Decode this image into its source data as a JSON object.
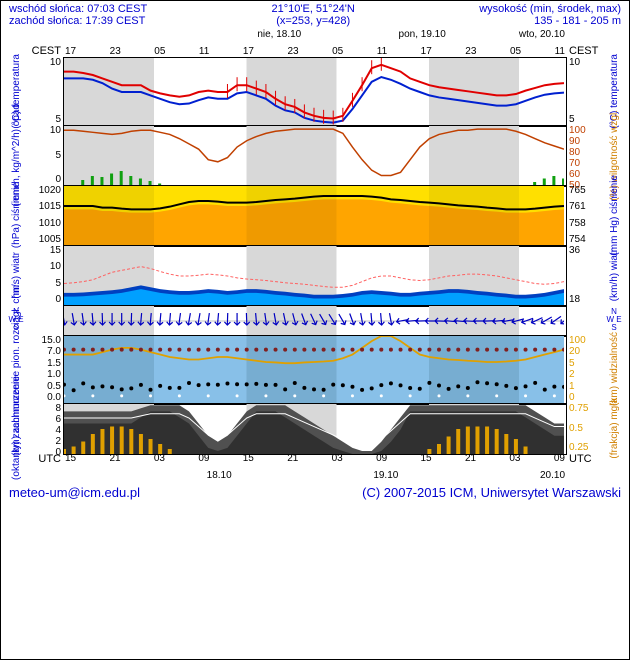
{
  "header": {
    "sunrise": "wschód słońca: 07:03 CEST",
    "sunset": "zachód słońca: 17:39 CEST",
    "coords": "21°10'E, 51°24'N",
    "xy": "(x=253, y=428)",
    "alt_label": "wysokość (min, środek, max)",
    "alt_val": "135 - 181 - 205 m"
  },
  "time": {
    "tz_left": "CEST",
    "tz_right": "CEST",
    "day_labels": [
      "nie, 18.10",
      "pon, 19.10",
      "wto, 20.10"
    ],
    "top_hours": [
      "17",
      "23",
      "05",
      "11",
      "17",
      "23",
      "05",
      "11",
      "17",
      "23",
      "05",
      "11"
    ],
    "bottom_tz": "UTC",
    "bottom_hours": [
      "15",
      "21",
      "03",
      "09",
      "15",
      "21",
      "03",
      "09",
      "15",
      "21",
      "03",
      "09"
    ],
    "bottom_days": [
      "18.10",
      "19.10",
      "20.10"
    ]
  },
  "night_bands": [
    [
      0,
      0.18
    ],
    [
      0.365,
      0.545
    ],
    [
      0.73,
      0.91
    ]
  ],
  "panels": {
    "temp": {
      "h": 68,
      "ylab_l": "temperatura",
      "ylab_l2": "(°C)",
      "ylab_r": "temperatura",
      "ylab_r2": "(°C)",
      "yticks_l": [
        "10",
        "5"
      ],
      "yticks_r": [
        "10",
        "5"
      ],
      "ylim": [
        3,
        13
      ],
      "red": [
        11,
        11,
        10.8,
        10.5,
        10,
        9.5,
        9,
        9,
        9,
        8.2,
        7.8,
        7.5,
        7.3,
        7.5,
        8,
        8.2,
        8,
        8,
        9,
        9,
        8.5,
        8,
        7,
        6.2,
        5.8,
        5,
        4.5,
        4.2,
        4.1,
        4.5,
        6.7,
        9,
        11.5,
        12,
        11.5,
        11,
        10,
        9.5,
        9,
        8.7,
        8.5,
        8.3,
        8.1,
        7.9,
        7.7,
        7.5,
        7.5,
        7.7,
        8.2,
        8.6,
        9,
        9.2,
        9.3
      ],
      "blue": [
        10,
        10,
        10,
        9.8,
        9.3,
        8.5,
        8,
        8,
        8,
        7.5,
        7,
        6.5,
        6.2,
        6.3,
        6.8,
        7.2,
        7,
        7,
        7.8,
        8,
        7.5,
        7,
        6,
        5.3,
        5,
        4.2,
        3.8,
        3.6,
        3.5,
        3.8,
        5.5,
        7.5,
        9.5,
        10.2,
        9.8,
        9.2,
        8.5,
        8,
        7.5,
        7.2,
        7,
        6.8,
        6.6,
        6.4,
        6.2,
        6,
        6,
        6.2,
        6.7,
        7.2,
        7.6,
        7.8,
        7.9
      ],
      "colors": {
        "red": "#e00000",
        "blue": "#0020d0"
      }
    },
    "precip": {
      "h": 60,
      "ylab_l": "opad",
      "ylab_l2": "(mm/h, kg/m^2/h)",
      "ylab_r": "wilgotność wzgl.",
      "ylab_r2": "(%)",
      "yticks_l": [
        "10",
        "5",
        "0"
      ],
      "yticks_r": [
        "100",
        "90",
        "80",
        "70",
        "60",
        "50"
      ],
      "ylim_l": [
        0,
        12
      ],
      "ylim_r": [
        45,
        102
      ],
      "hum": [
        98,
        98,
        97,
        96,
        95,
        94,
        95,
        97,
        98,
        98,
        96,
        94,
        90,
        85,
        80,
        70,
        68,
        72,
        82,
        88,
        92,
        95,
        97,
        98,
        99,
        99,
        99,
        99,
        99,
        95,
        82,
        70,
        60,
        55,
        55,
        58,
        70,
        82,
        90,
        94,
        96,
        98,
        98,
        99,
        99,
        99,
        99,
        97,
        94,
        90,
        86,
        83,
        80
      ],
      "bars": [
        0,
        0,
        1.2,
        2,
        1.8,
        2.5,
        3,
        2,
        1.5,
        1,
        0.5,
        0,
        0,
        0,
        0,
        0,
        0,
        0,
        0,
        0,
        0,
        0,
        0,
        0,
        0,
        0,
        0,
        0,
        0,
        0,
        0,
        0,
        0,
        0,
        0,
        0,
        0,
        0,
        0,
        0,
        0,
        0,
        0,
        0,
        0,
        0,
        0,
        0,
        0,
        0.8,
        1.5,
        2,
        1.5
      ],
      "colors": {
        "hum": "#c04000",
        "bar": "#10a010"
      }
    },
    "press": {
      "h": 60,
      "ylab_l": "ciśnienie",
      "ylab_l2": "(hPa)",
      "ylab_r": "ciśnienie",
      "ylab_r2": "(mm Hg)",
      "yticks_l": [
        "1020",
        "1015",
        "1010",
        "1005"
      ],
      "yticks_r": [
        "765",
        "761",
        "758",
        "754"
      ],
      "ylim": [
        1004,
        1022
      ],
      "line": [
        1016,
        1016,
        1016,
        1016,
        1015.5,
        1015.5,
        1015.2,
        1015,
        1015,
        1015,
        1015.3,
        1015.8,
        1016.5,
        1017.2,
        1017.5,
        1017.5,
        1017.3,
        1017,
        1017,
        1017,
        1017.2,
        1017.5,
        1017.8,
        1018,
        1018.2,
        1018.5,
        1018.8,
        1019,
        1019,
        1019,
        1019,
        1019,
        1018.8,
        1018.5,
        1018,
        1017.8,
        1017.5,
        1017.2,
        1017,
        1016.8,
        1016.5,
        1016.2,
        1016,
        1015.8,
        1015.5,
        1015.3,
        1015,
        1015,
        1015,
        1015.2,
        1015.5,
        1015.8,
        1016
      ],
      "fill_low": 1004,
      "colors": {
        "fill1": "#ffe000",
        "fill2": "#ffa500",
        "line": "#000"
      }
    },
    "wind": {
      "h": 60,
      "ylab_l": "wiatr",
      "ylab_l2": "(m/s)",
      "ylab_r": "wiatr",
      "ylab_r2": "(km/h)",
      "yticks_l": [
        "15",
        "10",
        "5",
        "0"
      ],
      "yticks_r": [
        "36",
        "18"
      ],
      "ylim": [
        0,
        16
      ],
      "gust": [
        6,
        6.2,
        6.5,
        7,
        8,
        9,
        9.5,
        10,
        10.5,
        10,
        9.2,
        8.5,
        8,
        8,
        8.2,
        8.5,
        8.3,
        8,
        7.5,
        7.2,
        7,
        6.8,
        6.5,
        6.2,
        6,
        5.8,
        5.5,
        5.2,
        5,
        5,
        5.5,
        6.5,
        7.5,
        8,
        8,
        7.5,
        7,
        6.8,
        7,
        7.5,
        8,
        8.2,
        8.5,
        8.5,
        8.3,
        8,
        7.5,
        7,
        6.5,
        6,
        5.8,
        6,
        6.5
      ],
      "avg": [
        2.5,
        2.5,
        2.6,
        2.8,
        3,
        3.2,
        3.5,
        4,
        4.5,
        4,
        3.5,
        3.2,
        3,
        3,
        3.2,
        3.5,
        3.3,
        3,
        3.2,
        3.5,
        3.5,
        3.3,
        3,
        2.8,
        2.5,
        2.3,
        2,
        2,
        2,
        2.2,
        2.5,
        3,
        3.2,
        3,
        2.8,
        2.5,
        2.5,
        2.8,
        3,
        3.2,
        3.5,
        3.5,
        3.3,
        3,
        2.8,
        2.5,
        2.3,
        2,
        2,
        2.2,
        2.5,
        3,
        3.5
      ],
      "colors": {
        "gust": "#ff6060",
        "fill1": "#00a0ff",
        "fill2": "#0040c0"
      }
    },
    "dir": {
      "h": 30,
      "ylab_l": "N",
      "ylab_l2": "W   E",
      "ylab_l3": "S",
      "ylab_r": "N",
      "ylab_r2": "W   E",
      "ylab_r3": "S",
      "angles": [
        260,
        260,
        262,
        265,
        268,
        270,
        270,
        272,
        275,
        275,
        275,
        275,
        278,
        280,
        280,
        278,
        275,
        272,
        270,
        268,
        265,
        262,
        260,
        258,
        255,
        250,
        245,
        240,
        238,
        240,
        250,
        260,
        265,
        265,
        260,
        350,
        355,
        358,
        0,
        2,
        5,
        5,
        3,
        0,
        358,
        355,
        350,
        345,
        340,
        335,
        330,
        325,
        320
      ],
      "color": "#0000c0"
    },
    "cloud": {
      "h": 68,
      "ylab_l": "zachmurzenie pion. rozciągł. chm.",
      "ylab_l2": "(km)",
      "ylab_r": "widzialność",
      "ylab_r2": "(km)",
      "yticks_l": [
        "15.0",
        "7.0",
        "1.5",
        "1.0",
        "0.5",
        "0.0"
      ],
      "yticks_r": [
        "100",
        "20",
        "5",
        "2",
        "1",
        "0"
      ],
      "vis": [
        5,
        5,
        5,
        5,
        6,
        7,
        8,
        8,
        7,
        6,
        5,
        4,
        3.5,
        3,
        3,
        3.5,
        4,
        4,
        3.5,
        3,
        2.5,
        2,
        1.8,
        1.5,
        1.5,
        1.8,
        2,
        2.2,
        2.5,
        3.5,
        5,
        8,
        12,
        15,
        15,
        12,
        8,
        5,
        4,
        3.5,
        3,
        2.8,
        2.5,
        2.3,
        2,
        2,
        2.2,
        2.5,
        3,
        4,
        5,
        6,
        7
      ],
      "colors": {
        "bg": "#88c0e8",
        "vis": "#e0a000",
        "dot_hi": "#802020",
        "dot_lo": "#000",
        "dot_w": "#fff"
      }
    },
    "okta": {
      "h": 50,
      "ylab_l": "zachmurzenie",
      "ylab_l2": "(oktanty)",
      "ylab_r": "mgła",
      "ylab_r2": "(frakcja)",
      "yticks_l": [
        "8",
        "6",
        "4",
        "2",
        "0"
      ],
      "yticks_r": [
        "0.75",
        "0.5",
        "0.25"
      ],
      "ylim": [
        0,
        8.2
      ],
      "hi": [
        7,
        7,
        7,
        7,
        7,
        7,
        7,
        7,
        7.5,
        8,
        8,
        8,
        8,
        7,
        5,
        3,
        2,
        3,
        5,
        7,
        8,
        8,
        8,
        8,
        7,
        6,
        5,
        4,
        3,
        2,
        1,
        0.5,
        0.5,
        2,
        4,
        6,
        8,
        8,
        8,
        8,
        8,
        8,
        8,
        8,
        8,
        8,
        8,
        8,
        8,
        7,
        6,
        5,
        5
      ],
      "lo": [
        5,
        5,
        5,
        5,
        5,
        5,
        5,
        5,
        6,
        7,
        7,
        7,
        6,
        5,
        3,
        1,
        0.5,
        1,
        3,
        5,
        7,
        7,
        7,
        6,
        5,
        4,
        3,
        2,
        1,
        0.5,
        0,
        0,
        0,
        0.5,
        2,
        4,
        7,
        7,
        7,
        7,
        7,
        7,
        7,
        7,
        7,
        7,
        7,
        7,
        6,
        5,
        4,
        3,
        3
      ],
      "fog": [
        0.1,
        0.15,
        0.25,
        0.4,
        0.5,
        0.55,
        0.55,
        0.5,
        0.4,
        0.3,
        0.2,
        0.1,
        0,
        0,
        0,
        0,
        0,
        0,
        0,
        0,
        0,
        0,
        0,
        0,
        0,
        0,
        0,
        0,
        0,
        0,
        0,
        0,
        0,
        0,
        0,
        0,
        0,
        0,
        0.1,
        0.2,
        0.35,
        0.5,
        0.55,
        0.55,
        0.55,
        0.5,
        0.4,
        0.3,
        0.15,
        0,
        0,
        0,
        0
      ],
      "colors": {
        "hi": "#505050",
        "lo": "#303030",
        "fog": "#e0a000",
        "line": "#fff"
      }
    }
  },
  "footer": {
    "email": "meteo-um@icm.edu.pl",
    "copy": "(C) 2007-2015 ICM, Uniwersytet Warszawski"
  }
}
